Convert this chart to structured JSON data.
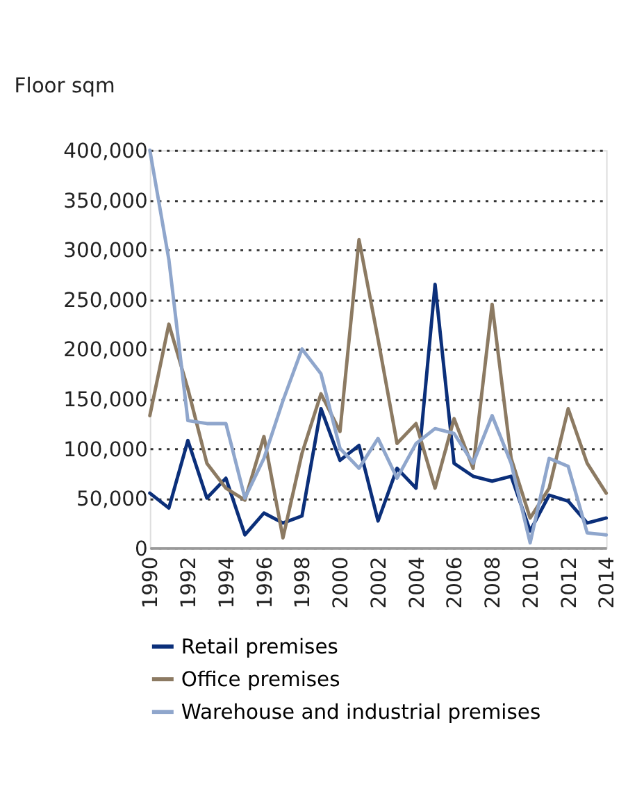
{
  "chart_data": {
    "type": "line",
    "ylabel": "Floor sqm",
    "x": [
      1990,
      1991,
      1992,
      1993,
      1994,
      1995,
      1996,
      1997,
      1998,
      1999,
      2000,
      2001,
      2002,
      2003,
      2004,
      2005,
      2006,
      2007,
      2008,
      2009,
      2010,
      2011,
      2012,
      2013,
      2014
    ],
    "series": [
      {
        "name": "Retail premises",
        "color": "#0b2f7a",
        "values": [
          55000,
          40000,
          108000,
          50000,
          70000,
          13000,
          35000,
          25000,
          32000,
          140000,
          88000,
          103000,
          27000,
          80000,
          60000,
          265000,
          85000,
          72000,
          67000,
          72000,
          17000,
          53000,
          47000,
          25000,
          30000
        ]
      },
      {
        "name": "Office premises",
        "color": "#8c7a62",
        "values": [
          133000,
          225000,
          160000,
          85000,
          60000,
          48000,
          112000,
          10000,
          95000,
          155000,
          117000,
          310000,
          210000,
          105000,
          125000,
          60000,
          130000,
          80000,
          245000,
          90000,
          30000,
          60000,
          140000,
          85000,
          55000
        ]
      },
      {
        "name": "Warehouse and industrial premises",
        "color": "#8fa6cc",
        "values": [
          400000,
          290000,
          128000,
          125000,
          125000,
          50000,
          90000,
          148000,
          200000,
          175000,
          100000,
          80000,
          110000,
          70000,
          105000,
          120000,
          115000,
          85000,
          133000,
          85000,
          5000,
          90000,
          82000,
          15000,
          13000
        ]
      }
    ],
    "xlim": [
      1990,
      2014
    ],
    "xticks": [
      1990,
      1992,
      1994,
      1996,
      1998,
      2000,
      2002,
      2004,
      2006,
      2008,
      2010,
      2012,
      2014
    ],
    "ylim": [
      0,
      400000
    ],
    "yticks": [
      0,
      {
        "value": 50000,
        "label": "50,000"
      },
      {
        "value": 100000,
        "label": "100,000"
      },
      {
        "value": 150000,
        "label": "150,000"
      },
      {
        "value": 200000,
        "label": "200,000"
      },
      {
        "value": 250000,
        "label": "250,000"
      },
      {
        "value": 300000,
        "label": "300,000"
      },
      {
        "value": 350000,
        "label": "350,000"
      },
      {
        "value": 400000,
        "label": "400,000"
      }
    ],
    "grid": "y",
    "legend": "bottom",
    "marker": "none",
    "line_style": "solid"
  }
}
